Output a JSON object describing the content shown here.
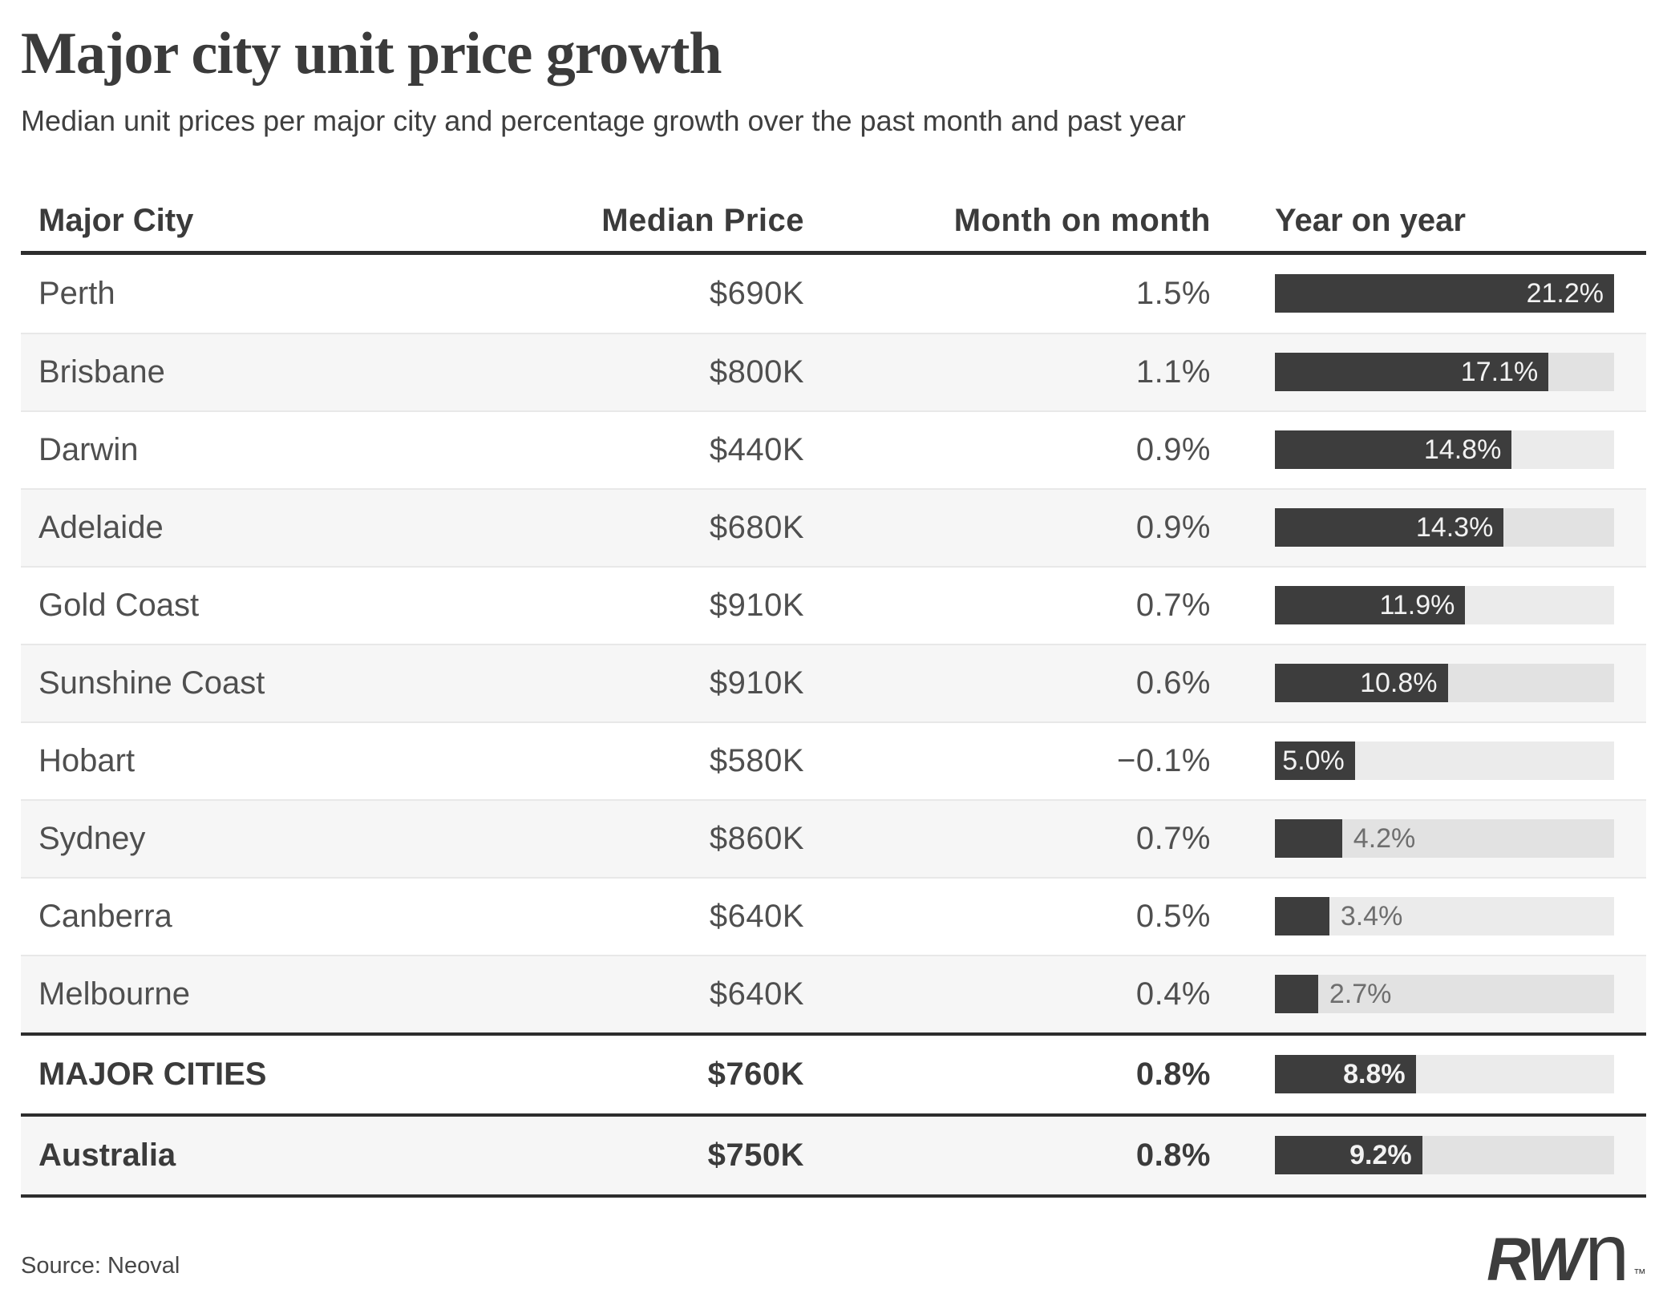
{
  "page": {
    "title": "Major city unit price growth",
    "subtitle": "Median unit prices per major city and percentage growth over the past month and past year"
  },
  "chart_data": {
    "type": "table",
    "columns": [
      "Major City",
      "Median Price",
      "Month on month",
      "Year on year"
    ],
    "bar_column": "Year on year",
    "bar_axis_max": 21.2,
    "rows": [
      {
        "city": "Perth",
        "median_price": "$690K",
        "month_on_month": "1.5%",
        "year_on_year_pct": 21.2,
        "year_on_year_label": "21.2%"
      },
      {
        "city": "Brisbane",
        "median_price": "$800K",
        "month_on_month": "1.1%",
        "year_on_year_pct": 17.1,
        "year_on_year_label": "17.1%"
      },
      {
        "city": "Darwin",
        "median_price": "$440K",
        "month_on_month": "0.9%",
        "year_on_year_pct": 14.8,
        "year_on_year_label": "14.8%"
      },
      {
        "city": "Adelaide",
        "median_price": "$680K",
        "month_on_month": "0.9%",
        "year_on_year_pct": 14.3,
        "year_on_year_label": "14.3%"
      },
      {
        "city": "Gold Coast",
        "median_price": "$910K",
        "month_on_month": "0.7%",
        "year_on_year_pct": 11.9,
        "year_on_year_label": "11.9%"
      },
      {
        "city": "Sunshine Coast",
        "median_price": "$910K",
        "month_on_month": "0.6%",
        "year_on_year_pct": 10.8,
        "year_on_year_label": "10.8%"
      },
      {
        "city": "Hobart",
        "median_price": "$580K",
        "month_on_month": "−0.1%",
        "year_on_year_pct": 5.0,
        "year_on_year_label": "5.0%"
      },
      {
        "city": "Sydney",
        "median_price": "$860K",
        "month_on_month": "0.7%",
        "year_on_year_pct": 4.2,
        "year_on_year_label": "4.2%"
      },
      {
        "city": "Canberra",
        "median_price": "$640K",
        "month_on_month": "0.5%",
        "year_on_year_pct": 3.4,
        "year_on_year_label": "3.4%"
      },
      {
        "city": "Melbourne",
        "median_price": "$640K",
        "month_on_month": "0.4%",
        "year_on_year_pct": 2.7,
        "year_on_year_label": "2.7%"
      }
    ],
    "summary_rows": [
      {
        "city": "MAJOR CITIES",
        "median_price": "$760K",
        "month_on_month": "0.8%",
        "year_on_year_pct": 8.8,
        "year_on_year_label": "8.8%"
      },
      {
        "city": "Australia",
        "median_price": "$750K",
        "month_on_month": "0.8%",
        "year_on_year_pct": 9.2,
        "year_on_year_label": "9.2%"
      }
    ]
  },
  "footer": {
    "source": "Source: Neoval",
    "logo_bold": "RW",
    "logo_light": "n",
    "logo_tm": "™"
  },
  "colors": {
    "bar_fill": "#3d3d3d",
    "bar_track": "rgba(0,0,0,0.08)",
    "dark_line": "#2d2d2d",
    "row_alt_bg": "#f6f6f6",
    "row_separator": "#e8e8e8",
    "text_primary": "#3b3b3b",
    "text_secondary": "#4f4f4f",
    "bar_label_inside": "#f2f2f2",
    "bar_label_outside": "#6e6e6e"
  }
}
